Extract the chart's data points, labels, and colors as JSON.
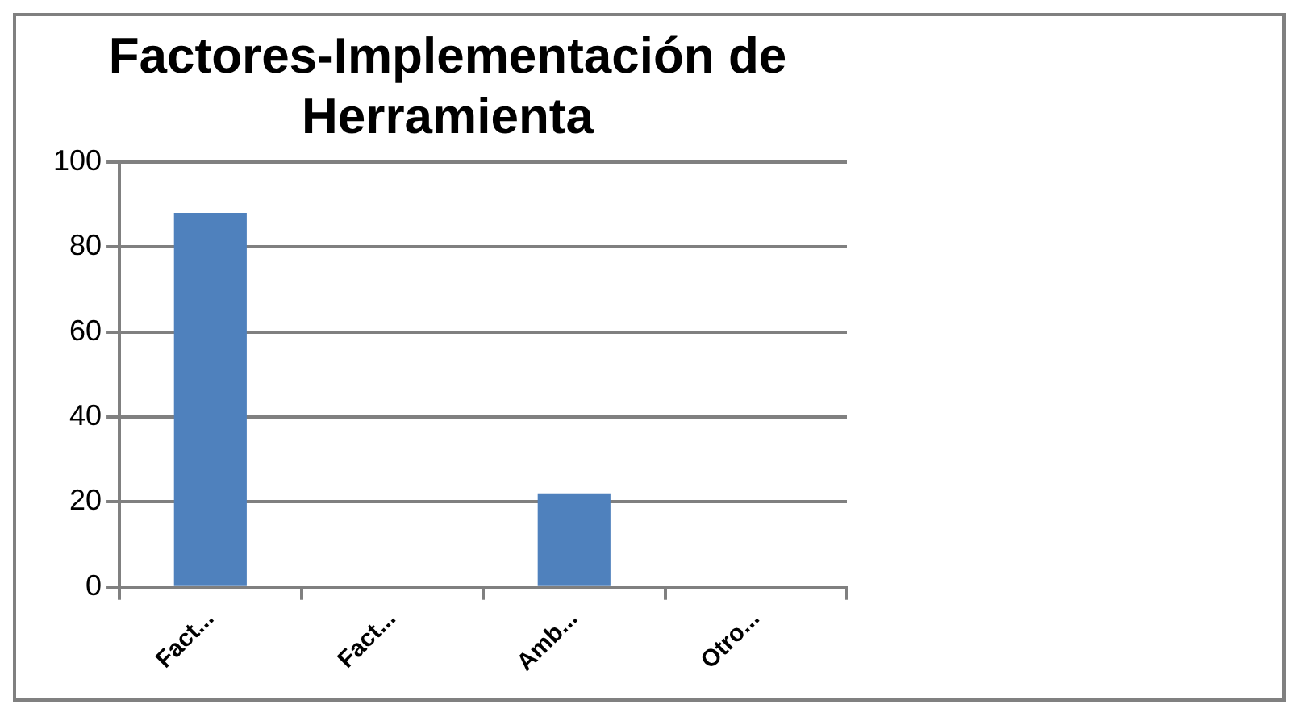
{
  "chart_data": {
    "type": "bar",
    "title": "Factores-Implementación de Herramienta",
    "categories": [
      "Fact...",
      "Fact...",
      "Amb...",
      "Otro..."
    ],
    "values": [
      88,
      0,
      22,
      0
    ],
    "color": "#4f81bd",
    "ylim": [
      0,
      100
    ],
    "yticks": [
      0,
      20,
      40,
      60,
      80,
      100
    ],
    "grid": "y",
    "legend": false
  }
}
